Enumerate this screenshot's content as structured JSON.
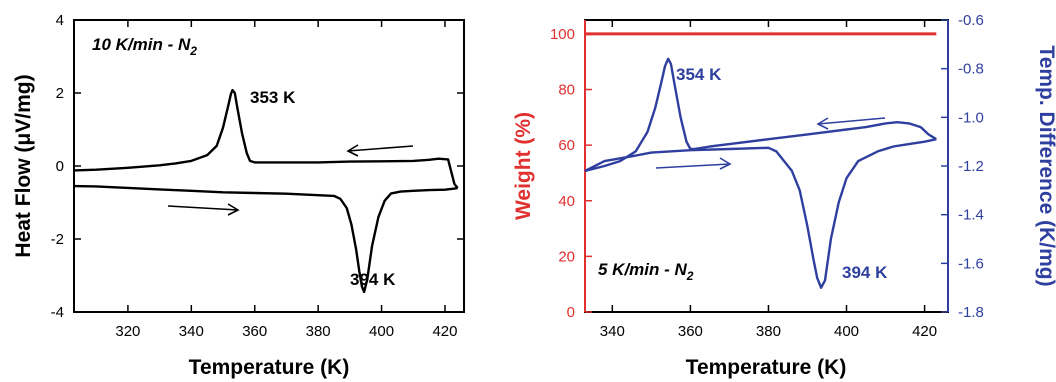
{
  "colors": {
    "heat_flow": "#000000",
    "weight": "#e03030",
    "temp_diff": "#2f3f9f"
  },
  "chart_data": [
    {
      "type": "line",
      "xlabel": "Temperature (K)",
      "ylabel": "Heat Flow (μV/mg)",
      "xlim": [
        303,
        426
      ],
      "ylim": [
        -4,
        4
      ],
      "xticks": [
        320,
        340,
        360,
        380,
        400,
        420
      ],
      "yticks": [
        -4,
        -2,
        0,
        2,
        4
      ],
      "grid": false,
      "annotations": {
        "condition": "10 K/min - N",
        "condition_sub": "2",
        "peak_cooling": "353 K",
        "peak_heating": "394 K"
      },
      "series": [
        {
          "role": "cooling",
          "color": "#000000",
          "x": [
            303,
            310,
            320,
            330,
            335,
            340,
            345,
            348,
            350,
            351.5,
            352.5,
            353,
            353.7,
            354.5,
            356,
            357.5,
            358.5,
            360,
            365,
            370,
            380,
            390,
            400,
            410,
            415,
            418,
            421,
            423
          ],
          "y": [
            -0.12,
            -0.1,
            -0.05,
            0.02,
            0.07,
            0.14,
            0.3,
            0.55,
            1.05,
            1.6,
            1.98,
            2.08,
            2.0,
            1.6,
            0.9,
            0.35,
            0.14,
            0.1,
            0.1,
            0.1,
            0.1,
            0.12,
            0.13,
            0.14,
            0.17,
            0.2,
            0.18,
            -0.5
          ]
        },
        {
          "role": "heating",
          "color": "#000000",
          "x": [
            303,
            310,
            320,
            330,
            340,
            350,
            360,
            370,
            380,
            385,
            387,
            389,
            390.5,
            392,
            393,
            393.8,
            394.5,
            395.5,
            397,
            399,
            401,
            403,
            406,
            410,
            415,
            420,
            423,
            424
          ],
          "y": [
            -0.55,
            -0.56,
            -0.6,
            -0.64,
            -0.68,
            -0.72,
            -0.74,
            -0.76,
            -0.8,
            -0.82,
            -0.9,
            -1.15,
            -1.6,
            -2.3,
            -2.9,
            -3.3,
            -3.45,
            -3.1,
            -2.2,
            -1.4,
            -0.95,
            -0.75,
            -0.7,
            -0.68,
            -0.66,
            -0.65,
            -0.62,
            -0.6
          ]
        }
      ]
    },
    {
      "type": "line",
      "xlabel": "Temperature (K)",
      "ylabel": "Weight (%)",
      "ylabel_right": "Temp. Difference (K/mg)",
      "xlim": [
        333,
        426
      ],
      "ylim": [
        0,
        105
      ],
      "ylim_right": [
        -1.8,
        -0.6
      ],
      "xticks": [
        340,
        360,
        380,
        400,
        420
      ],
      "yticks": [
        0,
        20,
        40,
        60,
        80,
        100
      ],
      "yticks_right": [
        "-0.6",
        "-0.8",
        "-1.0",
        "-1.2",
        "-1.4",
        "-1.6",
        "-1.8"
      ],
      "grid": false,
      "annotations": {
        "condition": "5 K/min - N",
        "condition_sub": "2",
        "peak_cooling": "354 K",
        "peak_heating": "394 K"
      },
      "series": [
        {
          "name_axis": "left",
          "role": "weight",
          "color": "#e03030",
          "x": [
            333,
            423
          ],
          "y": [
            100,
            100
          ]
        },
        {
          "name_axis": "right",
          "role": "cooling",
          "color": "#2f3f9f",
          "x": [
            333,
            338,
            342,
            346,
            349,
            351,
            352.5,
            353.5,
            354.3,
            355,
            356,
            357.5,
            359,
            360,
            361,
            365,
            370,
            380,
            390,
            400,
            405,
            410,
            413,
            416,
            419,
            421,
            423
          ],
          "y": [
            -1.22,
            -1.2,
            -1.18,
            -1.14,
            -1.06,
            -0.96,
            -0.86,
            -0.79,
            -0.76,
            -0.78,
            -0.87,
            -1.0,
            -1.1,
            -1.13,
            -1.13,
            -1.12,
            -1.11,
            -1.09,
            -1.07,
            -1.05,
            -1.04,
            -1.025,
            -1.02,
            -1.025,
            -1.04,
            -1.07,
            -1.09
          ]
        },
        {
          "name_axis": "right",
          "role": "heating",
          "color": "#2f3f9f",
          "x": [
            333,
            338,
            345,
            350,
            360,
            370,
            380,
            382,
            384,
            386,
            388,
            390,
            391.5,
            392.5,
            393.5,
            394.5,
            396,
            398,
            400,
            403,
            408,
            412,
            416,
            420,
            423
          ],
          "y": [
            -1.22,
            -1.18,
            -1.16,
            -1.145,
            -1.135,
            -1.13,
            -1.125,
            -1.14,
            -1.18,
            -1.22,
            -1.3,
            -1.45,
            -1.58,
            -1.66,
            -1.7,
            -1.67,
            -1.5,
            -1.35,
            -1.25,
            -1.18,
            -1.14,
            -1.12,
            -1.11,
            -1.1,
            -1.09
          ]
        }
      ]
    }
  ]
}
